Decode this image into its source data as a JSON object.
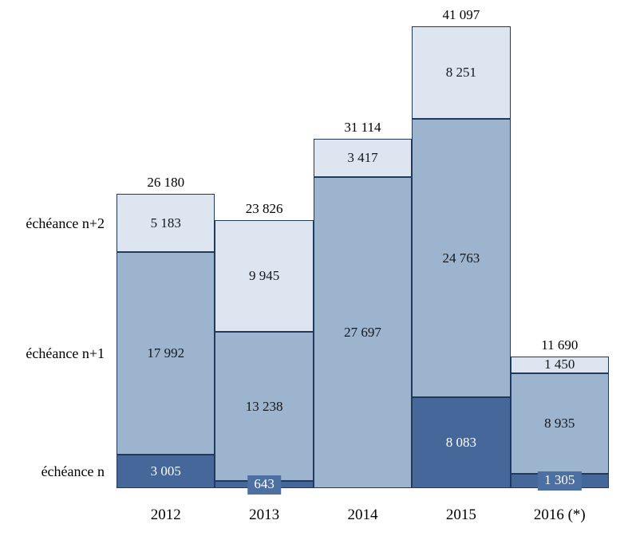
{
  "chart_data": {
    "type": "bar",
    "stacked": true,
    "title": "",
    "categories": [
      "2012",
      "2013",
      "2014",
      "2015",
      "2016 (*)"
    ],
    "series": [
      {
        "name": "échéance n",
        "color": "#45679A",
        "label_color": "#FFFFFF",
        "values": [
          3005,
          643,
          0,
          8083,
          1305
        ],
        "labels": [
          "3 005",
          "643",
          "",
          "8 083",
          "1 305"
        ],
        "callouts": [
          false,
          true,
          false,
          false,
          true
        ]
      },
      {
        "name": "échéance n+1",
        "color": "#9CB4CE",
        "label_color": "#14171C",
        "values": [
          17992,
          13238,
          27697,
          24763,
          8935
        ],
        "labels": [
          "17 992",
          "13 238",
          "27 697",
          "24 763",
          "8 935"
        ],
        "callouts": [
          false,
          false,
          false,
          false,
          false
        ]
      },
      {
        "name": "échéance n+2",
        "color": "#DCE5F0",
        "label_color": "#14171C",
        "values": [
          5183,
          9945,
          3417,
          8251,
          1450
        ],
        "labels": [
          "5 183",
          "9 945",
          "3 417",
          "8 251",
          "1 450"
        ],
        "callouts": [
          false,
          false,
          false,
          false,
          false
        ]
      }
    ],
    "totals": [
      26180,
      23826,
      31114,
      41097,
      11690
    ],
    "total_labels": [
      "26 180",
      "23 826",
      "31 114",
      "41 097",
      "11 690"
    ],
    "colors": {
      "border": "#1F3A5E",
      "callout_bg": "#4C70A2",
      "text": "#000000"
    },
    "axis": {
      "ylim": [
        0,
        41097
      ],
      "grid": false,
      "value_labels_position": "inside-center",
      "row_label_side": "left",
      "legend": "series names shown as row labels at left of first bar"
    }
  }
}
